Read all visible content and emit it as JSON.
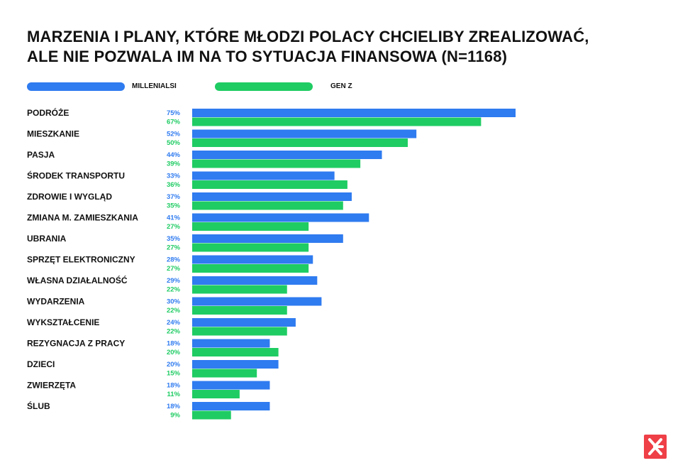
{
  "title_line1": "MARZENIA I PLANY, KTÓRE MŁODZI POLACY CHCIELIBY ZREALIZOWAĆ,",
  "title_line2": "ALE NIE POZWALA IM NA TO SYTUACJA FINANSOWA (N=1168)",
  "colors": {
    "millenials": "#2f7bf0",
    "genz": "#1fcc63",
    "brand": "#ef3f47"
  },
  "logo_icon": "brand-logo-icon",
  "chart_data": {
    "type": "bar",
    "orientation": "horizontal",
    "categories": [
      "PODRÓŻE",
      "MIESZKANIE",
      "PASJA",
      "ŚRODEK TRANSPORTU",
      "ZDROWIE I WYGLĄD",
      "ZMIANA M. ZAMIESZKANIA",
      "UBRANIA",
      "SPRZĘT ELEKTRONICZNY",
      "WŁASNA DZIAŁALNOŚĆ",
      "WYDARZENIA",
      "WYKSZTAŁCENIE",
      "REZYGNACJA Z PRACY",
      "DZIECI",
      "ZWIERZĘTA",
      "ŚLUB"
    ],
    "series": [
      {
        "name": "MILLENIALSI",
        "values": [
          75,
          52,
          44,
          33,
          37,
          41,
          35,
          28,
          29,
          30,
          24,
          18,
          20,
          18,
          18
        ]
      },
      {
        "name": "GEN Z",
        "values": [
          67,
          50,
          39,
          36,
          35,
          27,
          27,
          27,
          22,
          22,
          22,
          20,
          15,
          11,
          9
        ]
      }
    ],
    "value_suffix": "%",
    "xlim": [
      0,
      75
    ],
    "legend_position": "top",
    "grid": false
  }
}
